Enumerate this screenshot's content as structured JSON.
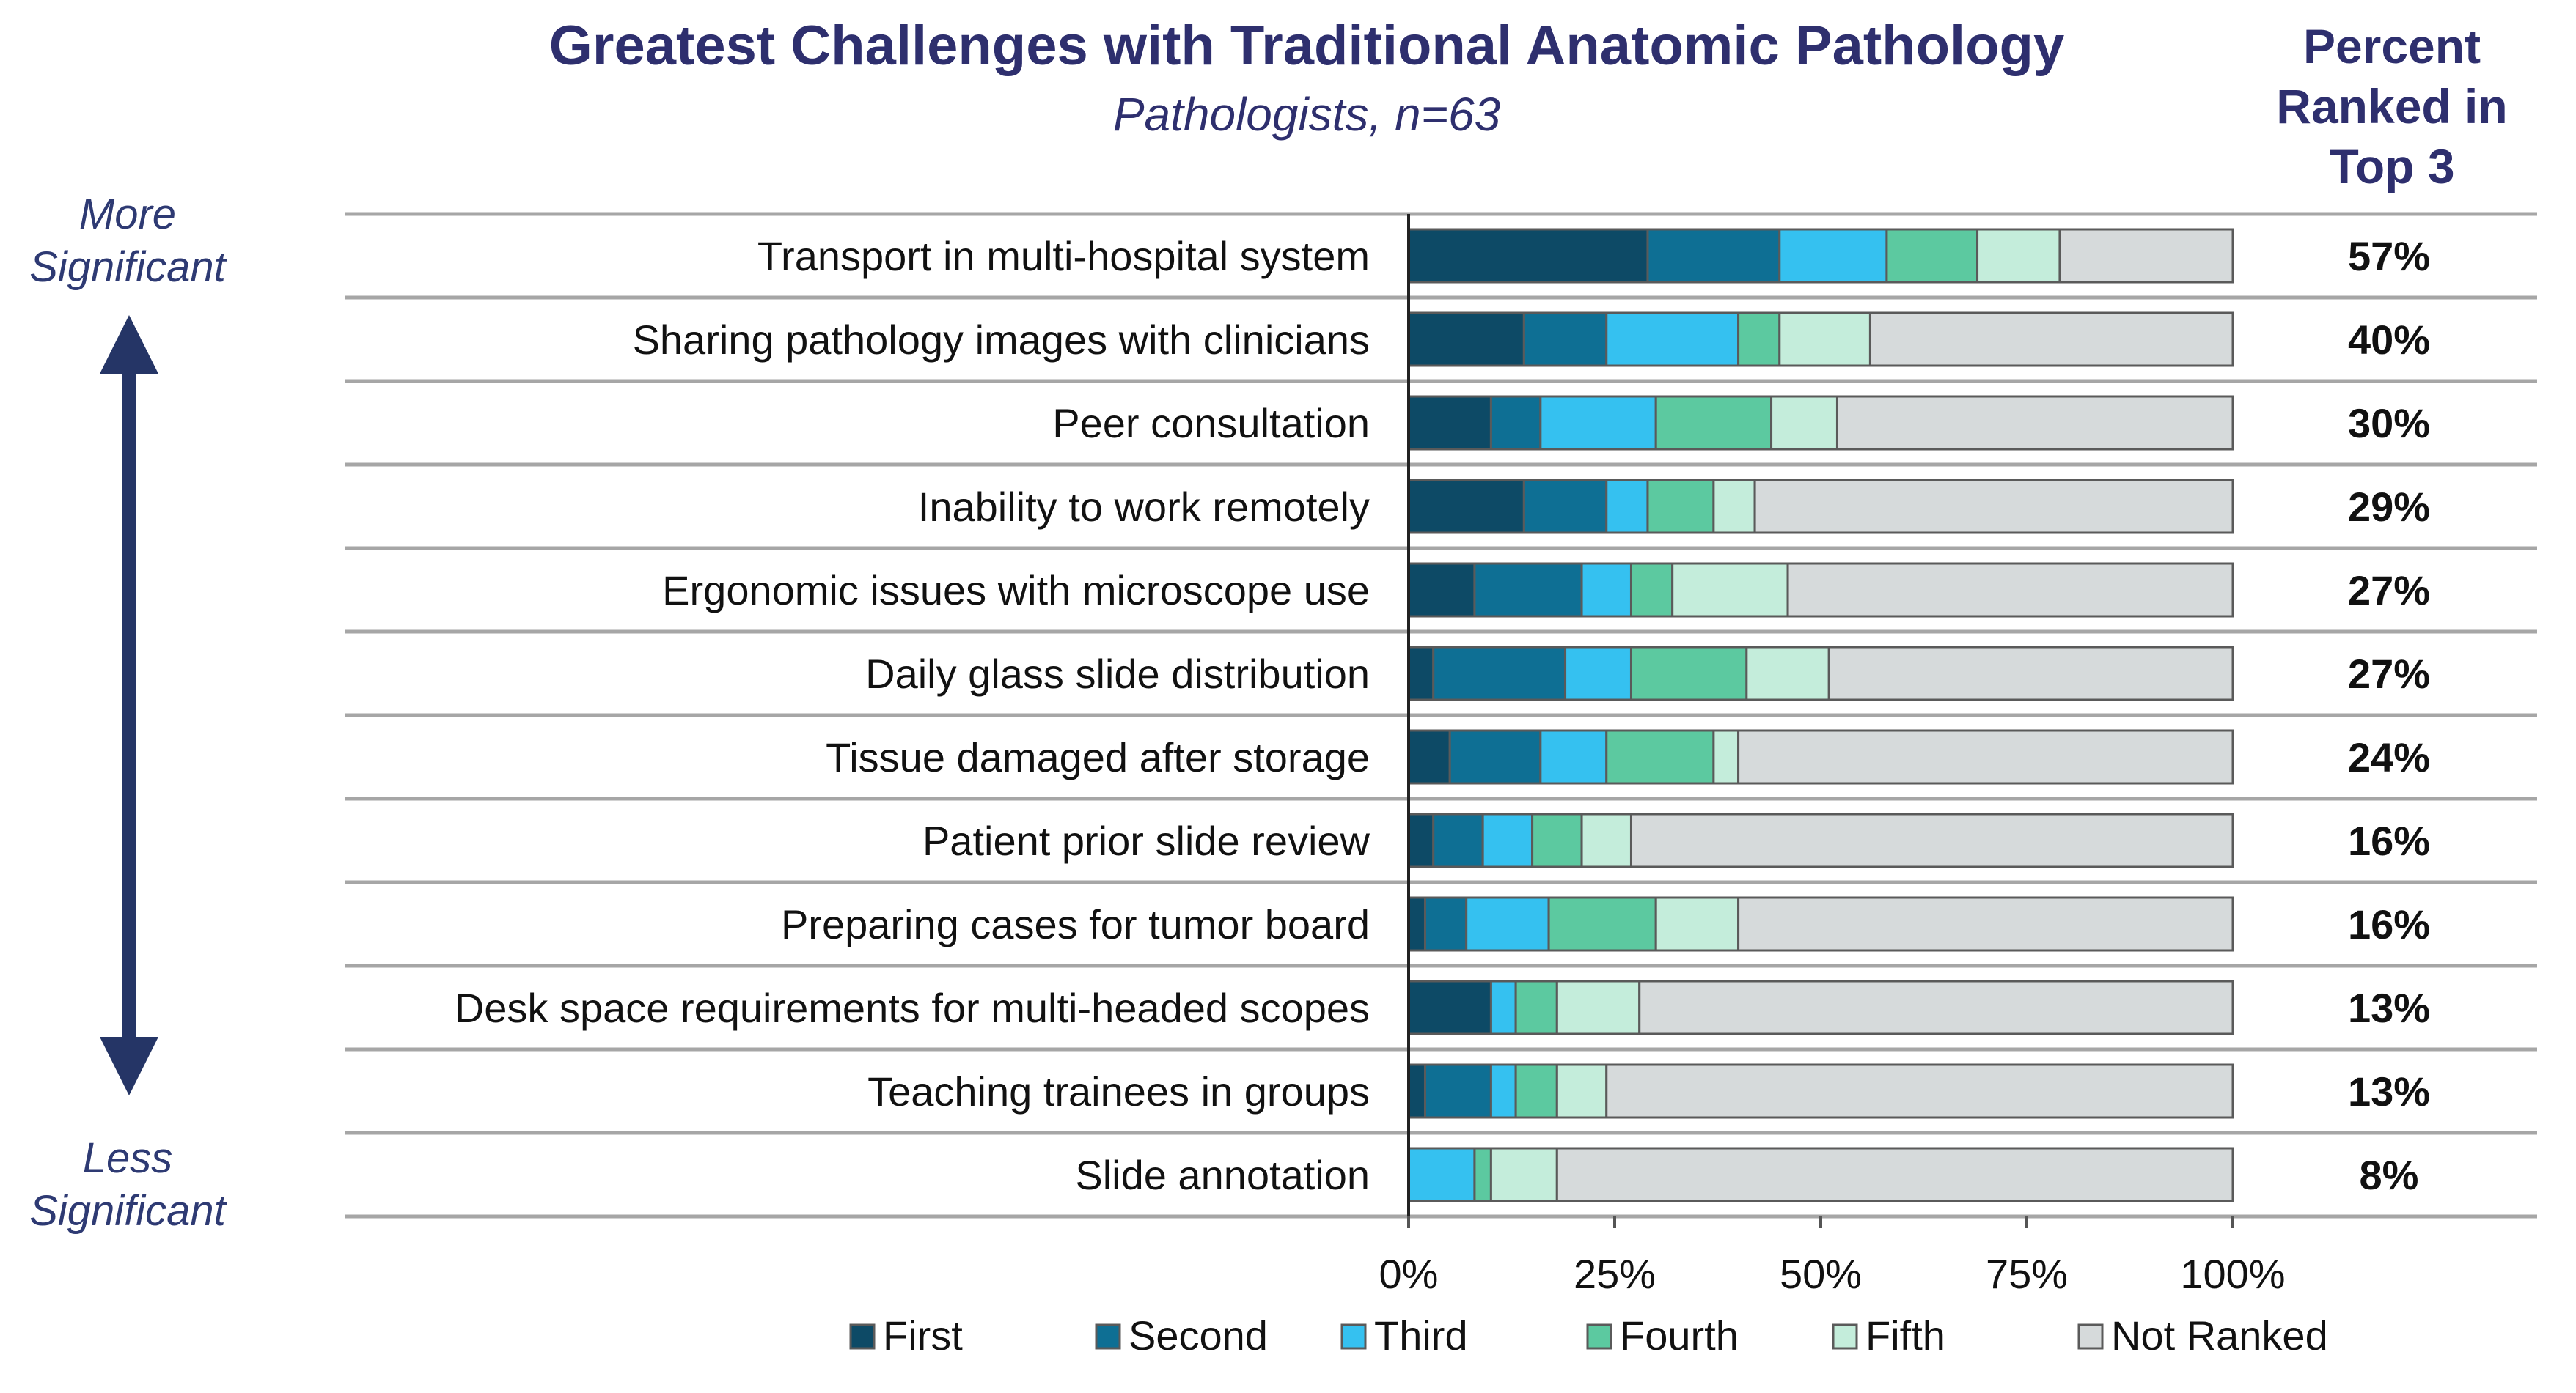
{
  "chart_data": {
    "type": "bar",
    "orientation": "horizontal",
    "stacked": true,
    "title": "Greatest Challenges with Traditional Anatomic Pathology",
    "subtitle": "Pathologists, n=63",
    "right_header": [
      "Percent",
      "Ranked in",
      "Top 3"
    ],
    "side_labels": {
      "top": [
        "More",
        "Significant"
      ],
      "bottom": [
        "Less",
        "Significant"
      ]
    },
    "xlim": [
      0,
      100
    ],
    "x_ticks": [
      "0%",
      "25%",
      "50%",
      "75%",
      "100%"
    ],
    "legend_position": "bottom",
    "categories": [
      "Transport in multi-hospital system",
      "Sharing pathology images with clinicians",
      "Peer consultation",
      "Inability to work remotely",
      "Ergonomic issues with microscope use",
      "Daily glass slide distribution",
      "Tissue damaged after storage",
      "Patient prior slide review",
      "Preparing cases for tumor board",
      "Desk space requirements for multi-headed scopes",
      "Teaching trainees in groups",
      "Slide annotation"
    ],
    "top3_percent": [
      "57%",
      "40%",
      "30%",
      "29%",
      "27%",
      "27%",
      "24%",
      "16%",
      "16%",
      "13%",
      "13%",
      "8%"
    ],
    "series": [
      {
        "name": "First",
        "color": "#0d4a66",
        "values": [
          29,
          14,
          10,
          14,
          8,
          3,
          5,
          3,
          2,
          10,
          2,
          0
        ]
      },
      {
        "name": "Second",
        "color": "#0e6f94",
        "values": [
          16,
          10,
          6,
          10,
          13,
          16,
          11,
          6,
          5,
          0,
          8,
          0
        ]
      },
      {
        "name": "Third",
        "color": "#35c1f0",
        "values": [
          13,
          16,
          14,
          5,
          6,
          8,
          8,
          6,
          10,
          3,
          3,
          8
        ]
      },
      {
        "name": "Fourth",
        "color": "#5cc9a0",
        "values": [
          11,
          5,
          14,
          8,
          5,
          14,
          13,
          6,
          13,
          5,
          5,
          2
        ]
      },
      {
        "name": "Fifth",
        "color": "#c4eddb",
        "values": [
          10,
          11,
          8,
          5,
          14,
          10,
          3,
          6,
          10,
          10,
          6,
          8
        ]
      },
      {
        "name": "Not Ranked",
        "color": "#d6dadb",
        "values": [
          21,
          44,
          48,
          58,
          54,
          49,
          60,
          73,
          60,
          72,
          76,
          82
        ]
      }
    ]
  }
}
